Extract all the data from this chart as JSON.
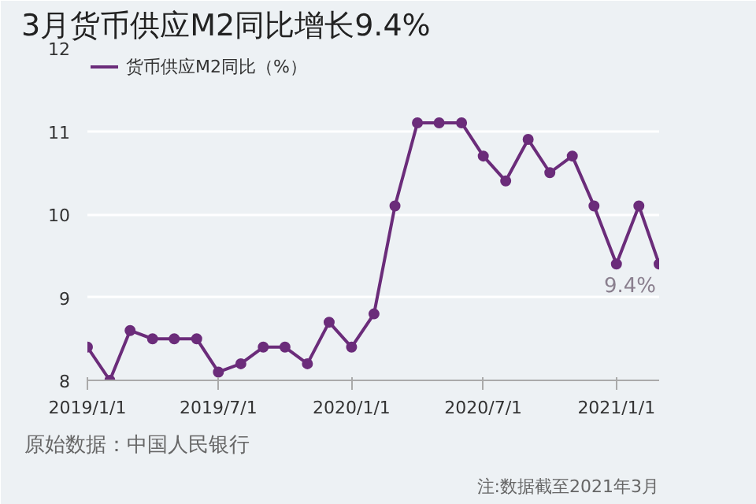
{
  "chart_data": {
    "type": "line",
    "title": "3月货币供应M2同比增长9.4%",
    "x": [
      "2019-01",
      "2019-02",
      "2019-03",
      "2019-04",
      "2019-05",
      "2019-06",
      "2019-07",
      "2019-08",
      "2019-09",
      "2019-10",
      "2019-11",
      "2019-12",
      "2020-01",
      "2020-02",
      "2020-03",
      "2020-04",
      "2020-05",
      "2020-06",
      "2020-07",
      "2020-08",
      "2020-09",
      "2020-10",
      "2020-11",
      "2020-12",
      "2021-01",
      "2021-02",
      "2021-03"
    ],
    "series": [
      {
        "name": "货币供应M2同比（%）",
        "color": "#6b2c7a",
        "values": [
          8.4,
          8.0,
          8.6,
          8.5,
          8.5,
          8.5,
          8.1,
          8.2,
          8.4,
          8.4,
          8.2,
          8.7,
          8.4,
          8.8,
          10.1,
          11.1,
          11.1,
          11.1,
          10.7,
          10.4,
          10.9,
          10.5,
          10.7,
          10.1,
          9.4,
          10.1,
          9.4
        ]
      }
    ],
    "xlim": [
      "2019-01",
      "2021-03"
    ],
    "xticks": [
      {
        "value": "2019-01-01",
        "label": "2019/1/1"
      },
      {
        "value": "2019-07-01",
        "label": "2019/7/1"
      },
      {
        "value": "2020-01-01",
        "label": "2020/1/1"
      },
      {
        "value": "2020-07-01",
        "label": "2020/7/1"
      },
      {
        "value": "2021-01-01",
        "label": "2021/1/1"
      }
    ],
    "ylim": [
      8,
      12
    ],
    "yticks": [
      8,
      9,
      10,
      11,
      12
    ],
    "grid": "y",
    "legend": "top left",
    "marker": "circle",
    "line_style": "solid",
    "annotations": [
      {
        "text": "9.4%",
        "x": "2021-03",
        "y": 9.4
      },
      "原始数据：中国人民银行",
      "注:数据截至2021年3月"
    ]
  }
}
